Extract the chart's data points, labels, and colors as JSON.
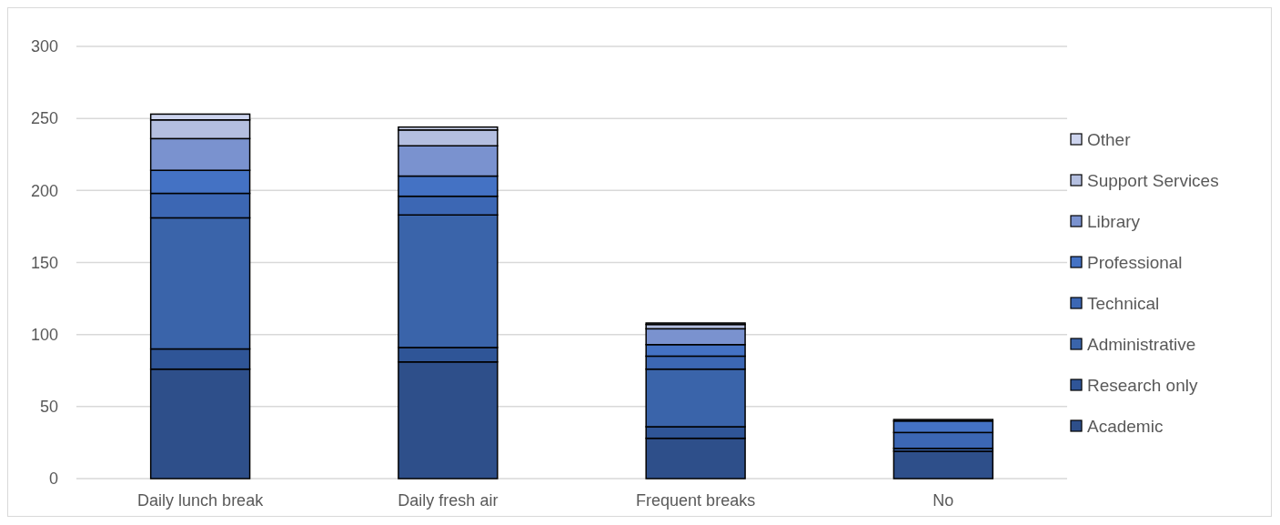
{
  "chart_data": {
    "type": "bar",
    "stacked": true,
    "categories": [
      "Daily lunch break",
      "Daily fresh air",
      "Frequent breaks",
      "No"
    ],
    "series": [
      {
        "name": "Academic",
        "color": "#2e4f8a",
        "values": [
          76,
          81,
          28,
          19
        ]
      },
      {
        "name": "Research only",
        "color": "#2f5597",
        "values": [
          14,
          10,
          8,
          0
        ]
      },
      {
        "name": "Administrative",
        "color": "#3a64aa",
        "values": [
          91,
          92,
          40,
          2
        ]
      },
      {
        "name": "Technical",
        "color": "#3c67b4",
        "values": [
          17,
          13,
          9,
          11
        ]
      },
      {
        "name": "Professional",
        "color": "#4472c4",
        "values": [
          16,
          14,
          8,
          8
        ]
      },
      {
        "name": "Library",
        "color": "#7a92cf",
        "values": [
          22,
          21,
          11,
          0
        ]
      },
      {
        "name": "Support Services",
        "color": "#b4bfe0",
        "values": [
          13,
          11,
          3,
          0
        ]
      },
      {
        "name": "Other",
        "color": "#cdd4ee",
        "values": [
          4,
          2,
          1,
          1
        ]
      }
    ],
    "ylim": [
      0,
      300
    ],
    "yticks": [
      0,
      50,
      100,
      150,
      200,
      250,
      300
    ],
    "grid": "y",
    "legend": "right"
  }
}
